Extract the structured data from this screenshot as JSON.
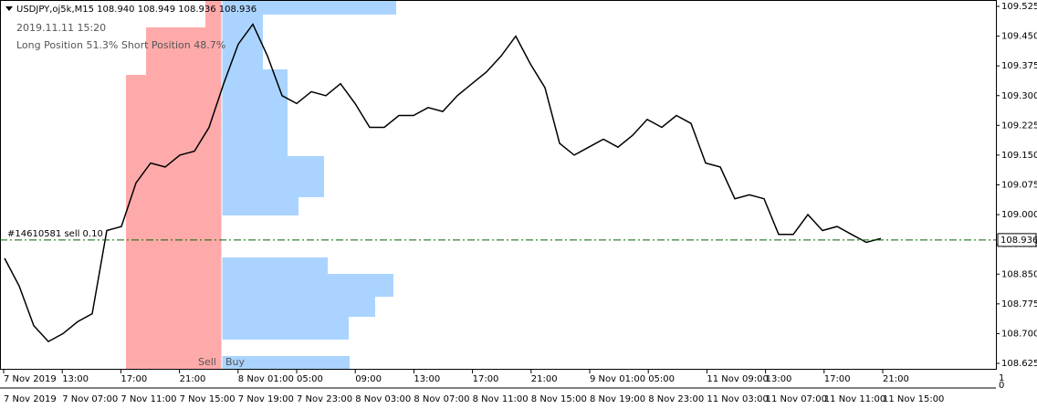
{
  "chart_data": {
    "type": "line",
    "title": "USDJPY,oj5k,M15  108.940 108.949 108.936 108.936",
    "subtitle": "2019.11.11 15:20",
    "annotation": "Long Position 51.3%  Short Position 48.7%",
    "sell_label": "Sell",
    "buy_label": "Buy",
    "color": "#000000",
    "values": [
      108.89,
      108.82,
      108.72,
      108.68,
      108.7,
      108.73,
      108.75,
      108.96,
      108.97,
      109.08,
      109.13,
      109.12,
      109.15,
      109.16,
      109.22,
      109.33,
      109.43,
      109.48,
      109.4,
      109.3,
      109.28,
      109.31,
      109.3,
      109.33,
      109.28,
      109.22,
      109.22,
      109.25,
      109.25,
      109.27,
      109.26,
      109.3,
      109.33,
      109.36,
      109.4,
      109.45,
      109.38,
      109.32,
      109.18,
      109.15,
      109.17,
      109.19,
      109.17,
      109.2,
      109.24,
      109.22,
      109.25,
      109.23,
      109.13,
      109.12,
      109.04,
      109.05,
      109.04,
      108.95,
      108.95,
      109.0,
      108.96,
      108.97,
      108.95,
      108.93,
      108.94
    ],
    "ylim": [
      108.625,
      109.525
    ],
    "yticks": [
      {
        "value": 109.525,
        "label": "109.525"
      },
      {
        "value": 109.45,
        "label": "109.450"
      },
      {
        "value": 109.375,
        "label": "109.375"
      },
      {
        "value": 109.3,
        "label": "109.300"
      },
      {
        "value": 109.225,
        "label": "109.225"
      },
      {
        "value": 109.15,
        "label": "109.150"
      },
      {
        "value": 109.075,
        "label": "109.075"
      },
      {
        "value": 109,
        "label": "109.000"
      },
      {
        "value": 108.925,
        "label": "108.925"
      },
      {
        "value": 108.85,
        "label": "108.850"
      },
      {
        "value": 108.775,
        "label": "108.775"
      },
      {
        "value": 108.7,
        "label": "108.700"
      },
      {
        "value": 108.625,
        "label": "108.625"
      }
    ],
    "level": {
      "value": 108.936,
      "label": "108.936",
      "order": "#14610581 sell 0.10",
      "color": "#006400"
    },
    "time_row1": [
      "7 Nov 2019",
      "13:00",
      "17:00",
      "21:00",
      "8 Nov 01:00",
      "05:00",
      "09:00",
      "13:00",
      "17:00",
      "21:00",
      "9 Nov 01:00",
      "05:00",
      "11 Nov 09:00",
      "13:00",
      "17:00",
      "21:00"
    ],
    "time_row2": [
      "7 Nov 2019",
      "7 Nov 07:00",
      "7 Nov 11:00",
      "7 Nov 15:00",
      "7 Nov 19:00",
      "7 Nov 23:00",
      "8 Nov 03:00",
      "8 Nov 07:00",
      "8 Nov 11:00",
      "8 Nov 15:00",
      "8 Nov 19:00",
      "8 Nov 23:00",
      "11 Nov 03:00",
      "11 Nov 07:00",
      "11 Nov 11:00",
      "11 Nov 15:00"
    ],
    "sub_axis": [
      1,
      0
    ]
  }
}
